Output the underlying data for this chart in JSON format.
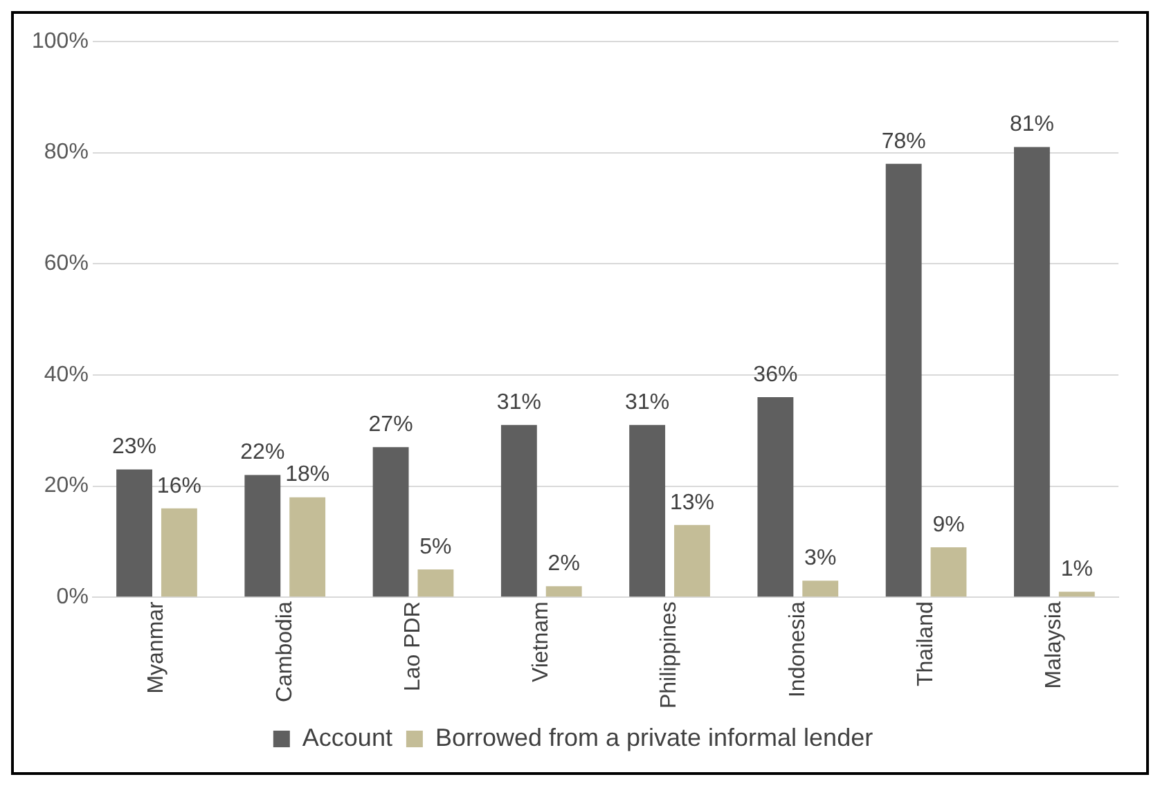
{
  "chart_data": {
    "type": "bar",
    "categories": [
      "Myanmar",
      "Cambodia",
      "Lao PDR",
      "Vietnam",
      "Philippines",
      "Indonesia",
      "Thailand",
      "Malaysia"
    ],
    "series": [
      {
        "name": "Account",
        "color": "#5f5f5f",
        "values": [
          23,
          22,
          27,
          31,
          31,
          36,
          78,
          81
        ],
        "value_labels": [
          "23%",
          "22%",
          "27%",
          "31%",
          "31%",
          "36%",
          "78%",
          "81%"
        ]
      },
      {
        "name": "Borrowed from a private informal lender",
        "color": "#c4bd97",
        "values": [
          16,
          18,
          5,
          2,
          13,
          3,
          9,
          1
        ],
        "value_labels": [
          "16%",
          "18%",
          "5%",
          "2%",
          "13%",
          "3%",
          "9%",
          "1%"
        ]
      }
    ],
    "ylim": [
      0,
      100
    ],
    "yticks": [
      {
        "value": 0,
        "label": "0%"
      },
      {
        "value": 20,
        "label": "20%"
      },
      {
        "value": 40,
        "label": "40%"
      },
      {
        "value": 60,
        "label": "60%"
      },
      {
        "value": 80,
        "label": "80%"
      },
      {
        "value": 100,
        "label": "100%"
      }
    ],
    "grid": "y",
    "legend": "bottom"
  }
}
